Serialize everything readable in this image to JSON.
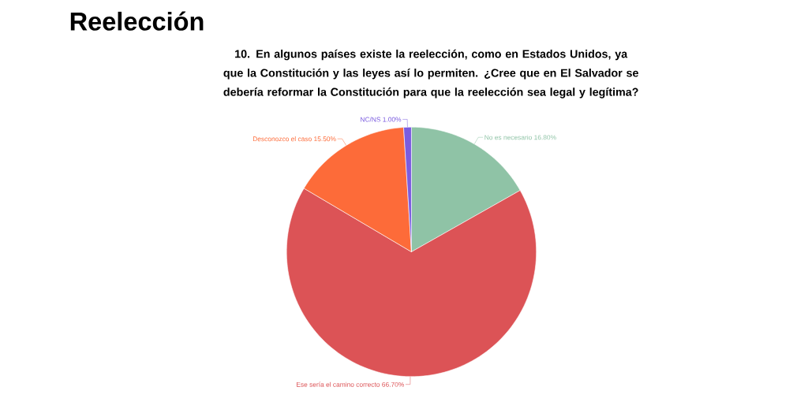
{
  "chart_data": {
    "type": "pie",
    "title": "Reelección",
    "subtitle": "10. En algunos países existe la reelección, como en Estados Unidos, ya que la Constitución y las leyes así lo permiten. ¿Cree que en El Salvador se debería reformar la Constitución para que la reelección sea legal y legítima?",
    "categories": [
      "No es necesario",
      "Ese sería el camino correcto",
      "Desconozco el caso",
      "NC/NS"
    ],
    "values": [
      16.8,
      66.7,
      15.5,
      1.0
    ],
    "value_labels": [
      "16.80%",
      "66.70%",
      "15.50%",
      "1.00%"
    ],
    "colors": [
      "#8fc3a6",
      "#dc5356",
      "#fd6b39",
      "#7b5cdf"
    ]
  }
}
